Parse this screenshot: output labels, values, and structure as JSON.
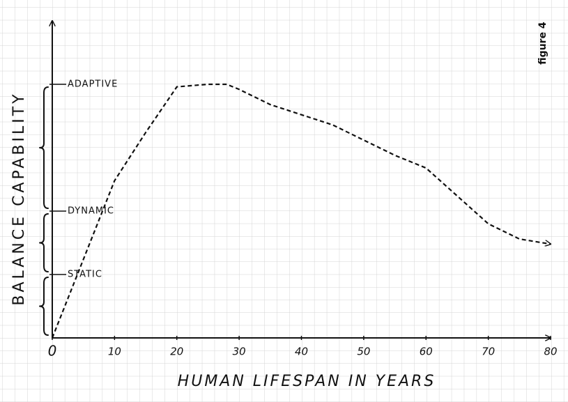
{
  "chart_data": {
    "type": "line",
    "annotation": "figure 4",
    "x_label": "HUMAN LIFESPAN IN YEARS",
    "y_label": "BALANCE CAPABILITY",
    "xlim": [
      0,
      80
    ],
    "xticks": [
      0,
      10,
      20,
      30,
      40,
      50,
      60,
      70,
      80
    ],
    "ylim": [
      0,
      125
    ],
    "yticks": [
      {
        "value": 25,
        "label": "STATIC"
      },
      {
        "value": 50,
        "label": "DYNAMIC"
      },
      {
        "value": 100,
        "label": "ADAPTIVE"
      }
    ],
    "grid": true,
    "series": [
      {
        "color": "#111111",
        "x": [
          0,
          5,
          10,
          15,
          20,
          25,
          28,
          30,
          35,
          40,
          45,
          50,
          55,
          60,
          65,
          70,
          75,
          80
        ],
        "values": [
          0,
          31,
          62,
          81,
          99,
          100,
          100,
          98,
          92,
          88,
          84,
          78,
          72,
          67,
          56,
          45,
          39,
          37
        ]
      }
    ]
  }
}
